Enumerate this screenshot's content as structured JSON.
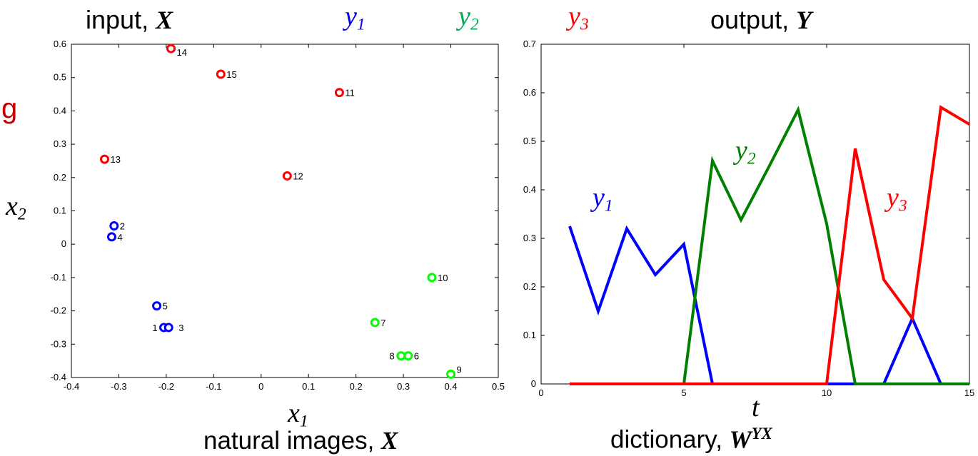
{
  "header": {
    "input_label": {
      "text": "input, ",
      "var": "X"
    },
    "output_label": {
      "text": "output, ",
      "var": "Y"
    },
    "y1": {
      "base": "y",
      "sub": "1",
      "color": "#0000ee"
    },
    "y2": {
      "base": "y",
      "sub": "2",
      "color": "#00a651"
    },
    "y3": {
      "base": "y",
      "sub": "3",
      "color": "#ff0000"
    }
  },
  "side_letter": {
    "text": "g",
    "color": "#c00000"
  },
  "footer": {
    "left": {
      "text": "natural images, ",
      "var": "X"
    },
    "right": {
      "text": "dictionary, ",
      "var": "W",
      "sup": "YX"
    }
  },
  "chart_data": [
    {
      "type": "scatter",
      "title": "",
      "xlabel": "x1",
      "ylabel": "x2",
      "xlim": [
        -0.4,
        0.5
      ],
      "ylim": [
        -0.4,
        0.6
      ],
      "xticks": [
        "-0.4",
        "-0.3",
        "-0.2",
        "-0.1",
        "0",
        "0.1",
        "0.2",
        "0.3",
        "0.4",
        "0.5"
      ],
      "yticks": [
        "0.6",
        "0.5",
        "0.4",
        "0.3",
        "0.2",
        "0.1",
        "0",
        "-0.1",
        "-0.2",
        "-0.3",
        "-0.4"
      ],
      "groups": [
        {
          "color": "#0000ff",
          "points": [
            {
              "label": "1",
              "x": -0.205,
              "y": -0.25
            },
            {
              "label": "2",
              "x": -0.31,
              "y": 0.055
            },
            {
              "label": "3",
              "x": -0.195,
              "y": -0.25
            },
            {
              "label": "4",
              "x": -0.315,
              "y": 0.022
            },
            {
              "label": "5",
              "x": -0.22,
              "y": -0.185
            }
          ]
        },
        {
          "color": "#00ff00",
          "points": [
            {
              "label": "6",
              "x": 0.31,
              "y": -0.335
            },
            {
              "label": "7",
              "x": 0.24,
              "y": -0.235
            },
            {
              "label": "8",
              "x": 0.295,
              "y": -0.335
            },
            {
              "label": "9",
              "x": 0.4,
              "y": -0.39
            },
            {
              "label": "10",
              "x": 0.36,
              "y": -0.1
            }
          ]
        },
        {
          "color": "#ff0000",
          "points": [
            {
              "label": "11",
              "x": 0.165,
              "y": 0.455
            },
            {
              "label": "12",
              "x": 0.055,
              "y": 0.205
            },
            {
              "label": "13",
              "x": -0.33,
              "y": 0.255
            },
            {
              "label": "14",
              "x": -0.19,
              "y": 0.587
            },
            {
              "label": "15",
              "x": -0.085,
              "y": 0.51
            }
          ]
        }
      ]
    },
    {
      "type": "line",
      "title": "",
      "xlabel": "t",
      "ylabel": "",
      "xlim": [
        0,
        15
      ],
      "ylim": [
        0,
        0.7
      ],
      "xticks": [
        "0",
        "5",
        "10",
        "15"
      ],
      "yticks": [
        "0.7",
        "0.6",
        "0.5",
        "0.4",
        "0.3",
        "0.2",
        "0.1",
        "0"
      ],
      "x": [
        1,
        2,
        3,
        4,
        5,
        6,
        7,
        8,
        9,
        10,
        11,
        12,
        13,
        14,
        15
      ],
      "series": [
        {
          "name": "y1",
          "color": "#0000ff",
          "values": [
            0.325,
            0.15,
            0.32,
            0.225,
            0.288,
            0,
            0,
            0,
            0,
            0,
            0,
            0,
            0.135,
            0,
            0
          ]
        },
        {
          "name": "y2",
          "color": "#008000",
          "values": [
            0,
            0,
            0,
            0,
            0,
            0.46,
            0.338,
            0.45,
            0.565,
            0.33,
            0,
            0,
            0,
            0,
            0
          ]
        },
        {
          "name": "y3",
          "color": "#ff0000",
          "values": [
            0,
            0,
            0,
            0,
            0,
            0,
            0,
            0,
            0,
            0,
            0.485,
            0.215,
            0.135,
            0.57,
            0.535
          ]
        }
      ]
    }
  ]
}
